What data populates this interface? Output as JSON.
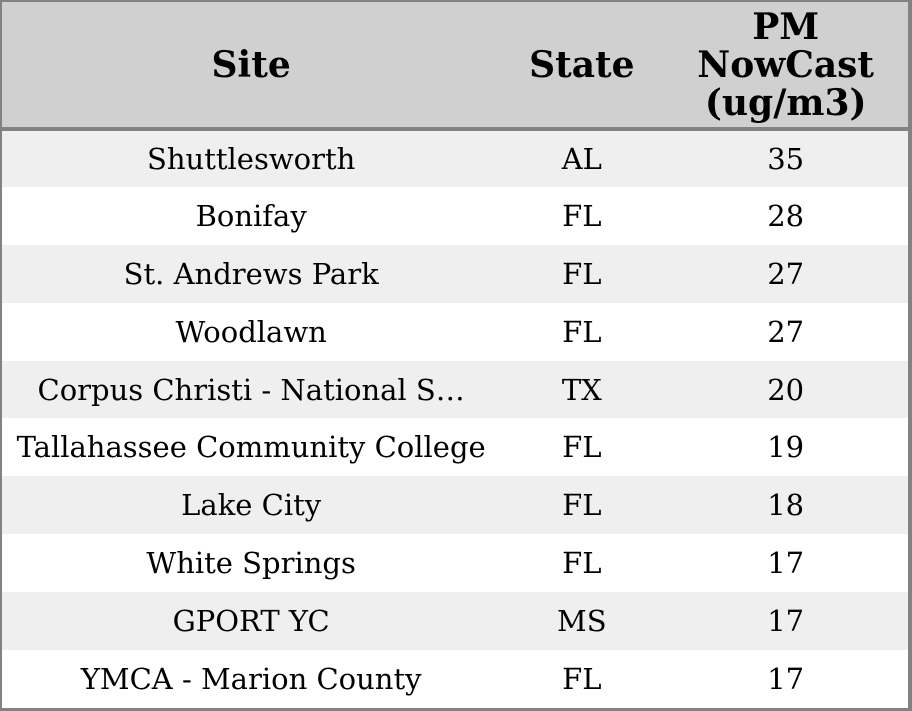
{
  "chart_data": {
    "type": "table",
    "title": "",
    "columns": [
      "Site",
      "State",
      "PM NowCast (ug/m3)"
    ],
    "rows": [
      [
        "Shuttlesworth",
        "AL",
        "35"
      ],
      [
        "Bonifay",
        "FL",
        "28"
      ],
      [
        "St. Andrews Park",
        "FL",
        "27"
      ],
      [
        "Woodlawn",
        "FL",
        "27"
      ],
      [
        "Corpus Christi - National S…",
        "TX",
        "20"
      ],
      [
        "Tallahassee Community College",
        "FL",
        "19"
      ],
      [
        "Lake City",
        "FL",
        "18"
      ],
      [
        "White Springs",
        "FL",
        "17"
      ],
      [
        "GPORT YC",
        "MS",
        "17"
      ],
      [
        "YMCA - Marion County",
        "FL",
        "17"
      ]
    ],
    "layout": {
      "striped": true,
      "stripe_pattern": "odd-rows-gray",
      "alignment": "center"
    }
  },
  "colors": {
    "header_bg": "#d0d0d0",
    "row_stripe": "#efefef",
    "row_white": "#ffffff",
    "border": "#828282",
    "text": "#000000"
  }
}
